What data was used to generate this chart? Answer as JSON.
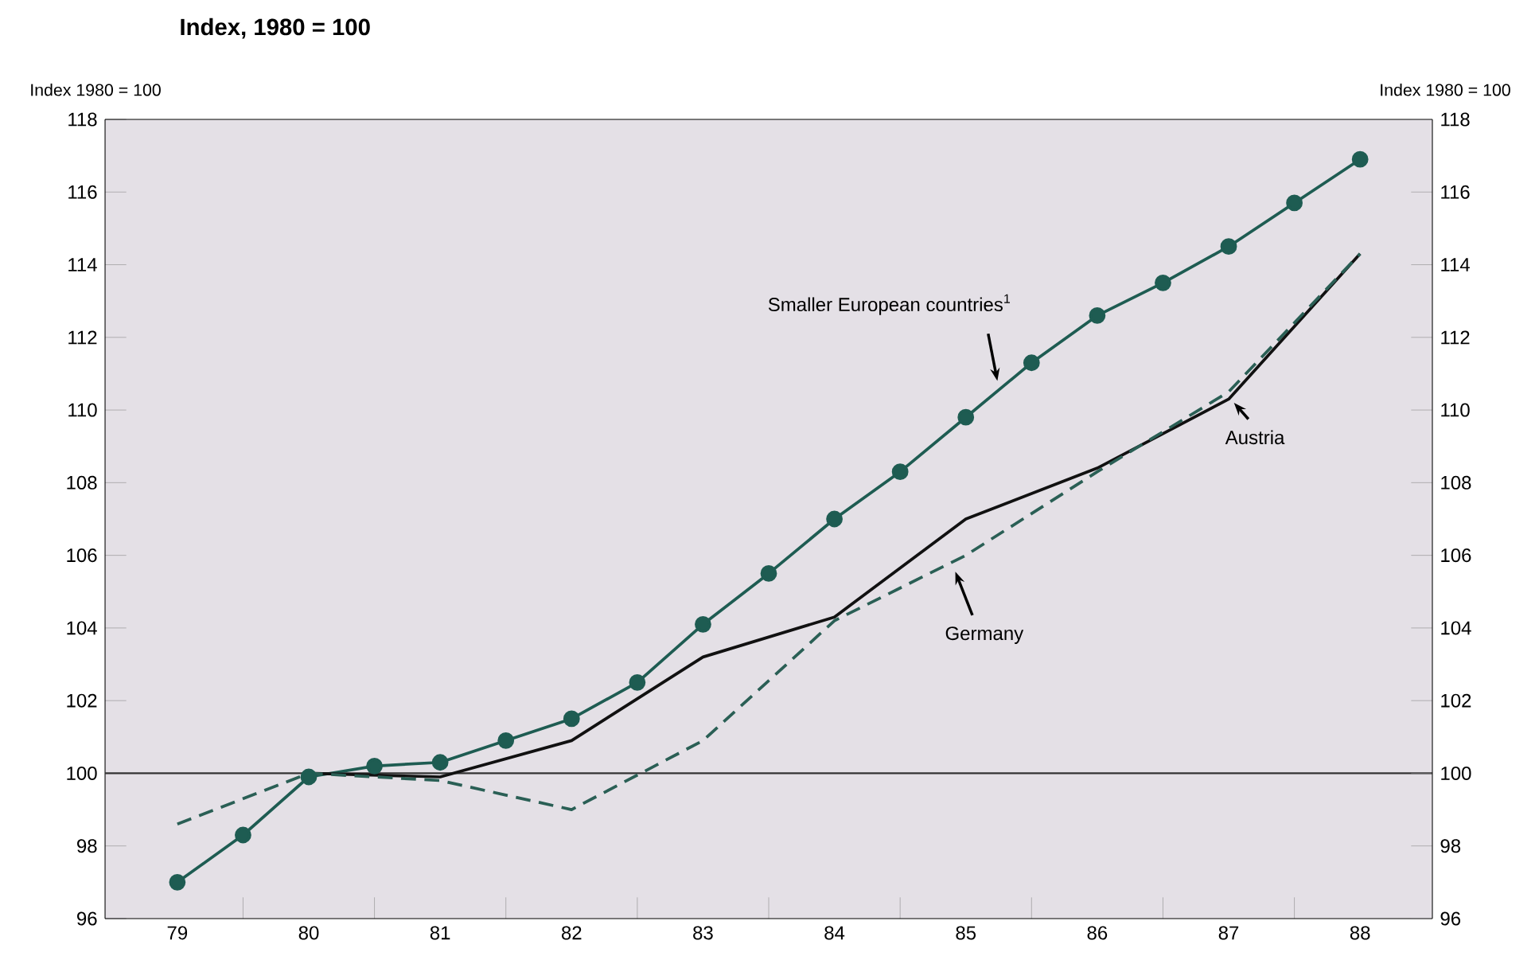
{
  "chart_data": {
    "type": "line",
    "title": "Index, 1980 = 100",
    "ylabel": "Index 1980 = 100",
    "y2label": "Index 1980 = 100",
    "xlim": [
      78.45,
      88.55
    ],
    "xticks": [
      79,
      {
        "value": 79.5,
        "label": null
      },
      80,
      {
        "value": 80.5,
        "label": null
      },
      81,
      {
        "value": 81.5,
        "label": null
      },
      82,
      {
        "value": 82.5,
        "label": null
      },
      83,
      {
        "value": 83.5,
        "label": null
      },
      84,
      {
        "value": 84.5,
        "label": null
      },
      85,
      {
        "value": 85.5,
        "label": null
      },
      86,
      {
        "value": 86.5,
        "label": null
      },
      87,
      {
        "value": 87.5,
        "label": null
      },
      88
    ],
    "ylim": [
      96,
      118
    ],
    "yticks": [
      96,
      98,
      100,
      102,
      104,
      106,
      108,
      110,
      112,
      114,
      116,
      118
    ],
    "y2lim": [
      96,
      118
    ],
    "y2ticks": [
      96,
      98,
      100,
      102,
      104,
      106,
      108,
      110,
      112,
      114,
      116,
      118
    ],
    "grid": false,
    "ref_lines": [
      {
        "axis": "y",
        "value": 100,
        "color": "#333333"
      }
    ],
    "series": [
      {
        "name": "Smaller European countries$^{1}$",
        "color": "#1e5c52",
        "marker": "circle",
        "line_style": "solid",
        "x": [
          79,
          79.5,
          80,
          80.5,
          81,
          81.5,
          82,
          82.5,
          83,
          83.5,
          84,
          84.5,
          85,
          85.5,
          86,
          86.5,
          87,
          87.5,
          88
        ],
        "values": [
          97.0,
          98.3,
          99.9,
          100.2,
          100.3,
          100.9,
          101.5,
          102.5,
          104.1,
          105.5,
          107.0,
          108.3,
          109.8,
          111.3,
          112.6,
          113.5,
          114.5,
          115.7,
          116.9
        ]
      },
      {
        "name": "Austria",
        "color": "#111111",
        "marker": "none",
        "line_style": "solid",
        "x": [
          80,
          81,
          82,
          83,
          84,
          85,
          86,
          87,
          88
        ],
        "values": [
          100.0,
          99.9,
          100.9,
          103.2,
          104.3,
          107.0,
          108.4,
          110.3,
          114.3
        ]
      },
      {
        "name": "Germany",
        "color": "#2a5f55",
        "marker": "none",
        "line_style": "dashed",
        "x": [
          79,
          80,
          81,
          82,
          83,
          84,
          85,
          86,
          87,
          88
        ],
        "values": [
          98.6,
          100.0,
          99.8,
          99.0,
          100.9,
          104.2,
          106.0,
          108.3,
          110.5,
          114.3
        ]
      }
    ]
  }
}
